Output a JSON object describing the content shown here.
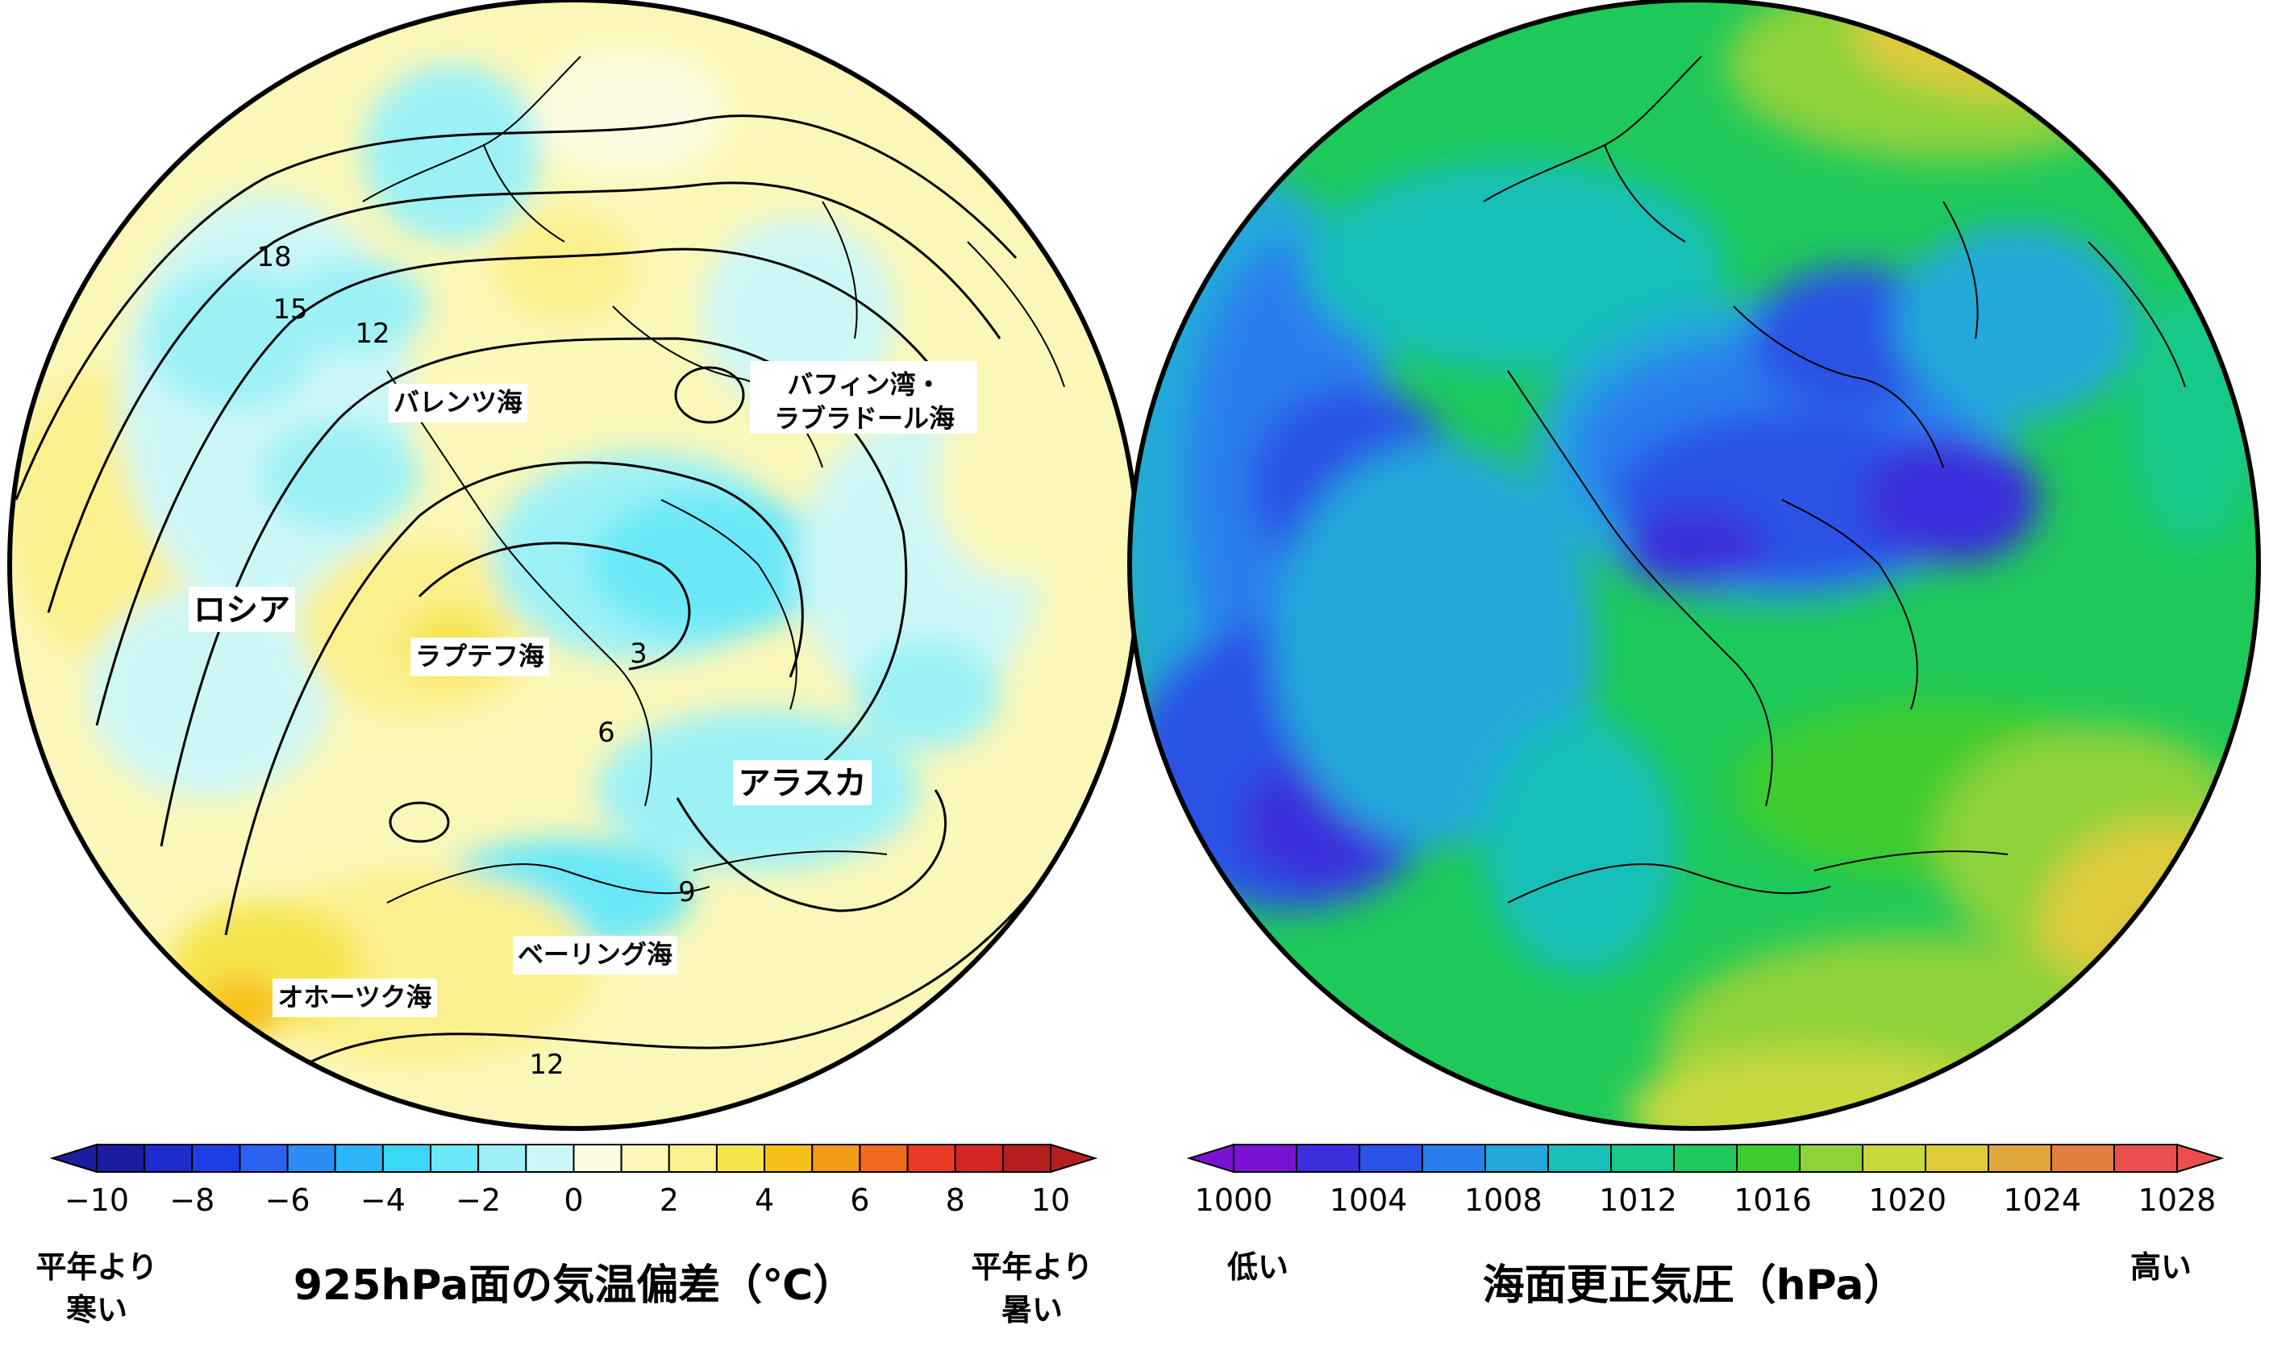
{
  "chart_data": [
    {
      "type": "heatmap",
      "title": "925hPa面の気温偏差（℃）",
      "colorbar": {
        "ticks": [
          "−10",
          "−8",
          "−6",
          "−4",
          "−2",
          "0",
          "2",
          "4",
          "6",
          "8",
          "10"
        ],
        "range": [
          -10,
          10
        ],
        "step": 1,
        "colors": [
          "#1c1ca0",
          "#1e2ccd",
          "#1f3fe6",
          "#2a63f0",
          "#2c8ef2",
          "#2cb6f5",
          "#39d8f6",
          "#6ae8f7",
          "#9cf1f6",
          "#cdf7f7",
          "#fdfce0",
          "#fbf7b8",
          "#fbf08e",
          "#f6e44d",
          "#f7c019",
          "#f29b17",
          "#ef6a1f",
          "#eb3a24",
          "#d42625",
          "#b51e1f"
        ],
        "low_end_label": "平年より寒い",
        "high_end_label": "平年より暑い",
        "low_end_lines": [
          "平年より",
          "寒い"
        ],
        "high_end_lines": [
          "平年より",
          "暑い"
        ]
      },
      "region_labels": [
        "ロシア",
        "バレンツ海",
        "ラプテフ海",
        "バフィン湾・ラブラドール海",
        "アラスカ",
        "ベーリング海",
        "オホーツク海"
      ],
      "baffin_lines": [
        "バフィン湾・",
        "ラブラドール海"
      ],
      "contour_labels": [
        "18",
        "15",
        "12",
        "3",
        "6",
        "9",
        "12"
      ]
    },
    {
      "type": "heatmap",
      "title": "海面更正気圧（hPa）",
      "colorbar": {
        "ticks": [
          "1000",
          "1004",
          "1008",
          "1012",
          "1016",
          "1020",
          "1024",
          "1028"
        ],
        "range": [
          1000,
          1028
        ],
        "step": 2,
        "colors": [
          "#7a12d4",
          "#3b2fdc",
          "#2a52e6",
          "#2a7fee",
          "#20a9d9",
          "#18c0b8",
          "#18c98a",
          "#1ec95a",
          "#3ccc2e",
          "#8ed23a",
          "#c8d83c",
          "#dfcb3a",
          "#e0a63a",
          "#e37e3e",
          "#ea4f4e"
        ],
        "low_end_label": "低い",
        "high_end_label": "高い"
      }
    }
  ],
  "colors": {
    "coast": "#000000",
    "contour": "#000000",
    "label_bg": "#ffffff"
  }
}
